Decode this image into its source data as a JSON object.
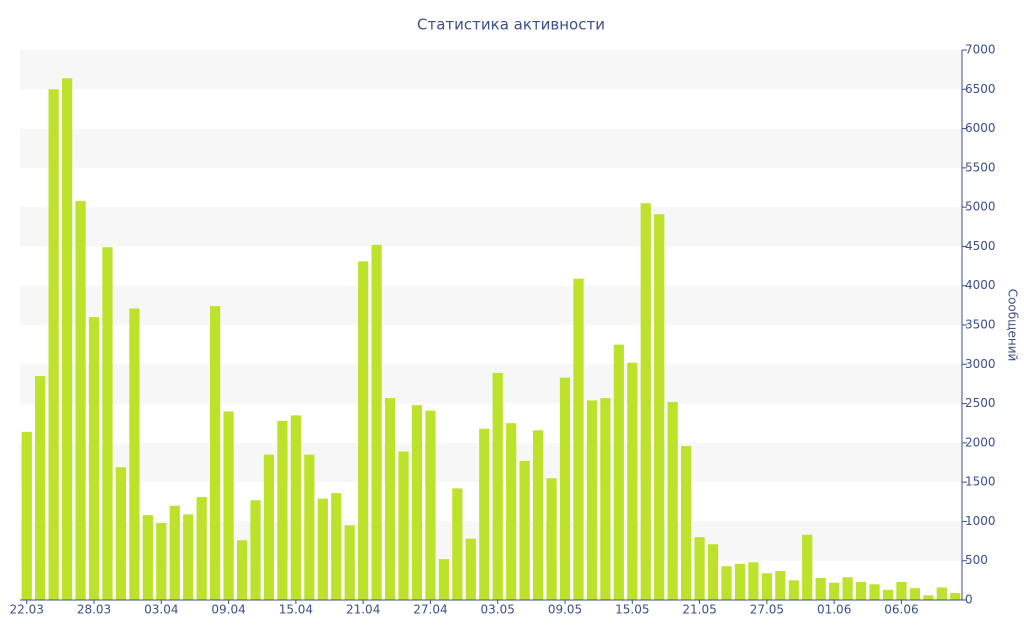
{
  "chart_data": {
    "type": "bar",
    "title": "Статистика активности",
    "y_label": "Сообщений",
    "color": "#bde22b",
    "categories": [
      "22.03",
      null,
      null,
      null,
      null,
      "28.03",
      null,
      null,
      null,
      null,
      "03.04",
      null,
      null,
      null,
      null,
      "09.04",
      null,
      null,
      null,
      null,
      "15.04",
      null,
      null,
      null,
      null,
      "21.04",
      null,
      null,
      null,
      null,
      "27.04",
      null,
      null,
      null,
      null,
      "03.05",
      null,
      null,
      null,
      null,
      "09.05",
      null,
      null,
      null,
      null,
      "15.05",
      null,
      null,
      null,
      null,
      "21.05",
      null,
      null,
      null,
      null,
      "27.05",
      null,
      null,
      null,
      null,
      "01.06",
      null,
      null,
      null,
      null,
      "06.06",
      null,
      null,
      null,
      null
    ],
    "values": [
      2140,
      2850,
      6500,
      6640,
      5080,
      3600,
      4490,
      1690,
      3710,
      1080,
      980,
      1200,
      1090,
      1310,
      3740,
      2400,
      760,
      1270,
      1850,
      2280,
      2350,
      1850,
      1290,
      1360,
      950,
      4310,
      4520,
      2570,
      1890,
      2480,
      2410,
      520,
      1420,
      780,
      2180,
      2890,
      2250,
      1770,
      2160,
      1550,
      2830,
      4090,
      2540,
      2570,
      3250,
      3020,
      5050,
      4910,
      2520,
      1960,
      800,
      710,
      430,
      460,
      480,
      340,
      370,
      250,
      830,
      280,
      220,
      290,
      230,
      200,
      130,
      230,
      150,
      60,
      160,
      90
    ],
    "ylim": [
      0,
      7000
    ],
    "yticks": [
      0,
      500,
      1000,
      1500,
      2000,
      2500,
      3000,
      3500,
      4000,
      4500,
      5000,
      5500,
      6000,
      6500,
      7000
    ],
    "axis_side": "right",
    "grid": "bands"
  }
}
